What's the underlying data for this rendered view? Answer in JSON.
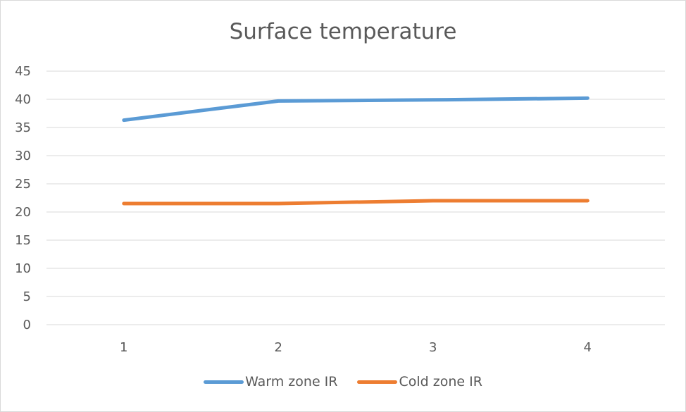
{
  "chart_data": {
    "type": "line",
    "title": "Surface temperature",
    "xlabel": "",
    "ylabel": "",
    "categories": [
      "1",
      "2",
      "3",
      "4"
    ],
    "ylim": [
      0,
      45
    ],
    "yticks": [
      "0",
      "5",
      "10",
      "15",
      "20",
      "25",
      "30",
      "35",
      "40",
      "45"
    ],
    "grid": true,
    "legend_position": "bottom",
    "series": [
      {
        "name": "Warm zone IR",
        "values": [
          36.3,
          39.7,
          39.9,
          40.2
        ],
        "color": "#5B9BD5"
      },
      {
        "name": "Cold zone IR",
        "values": [
          21.5,
          21.5,
          22.0,
          22.0
        ],
        "color": "#ED7D31"
      }
    ]
  }
}
